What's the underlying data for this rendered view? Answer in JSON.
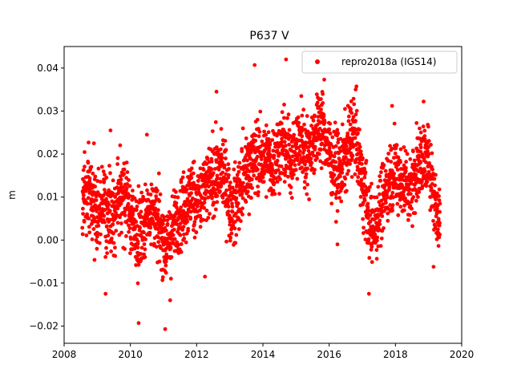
{
  "chart_data": {
    "type": "scatter",
    "title": "P637 V",
    "xlabel": "",
    "ylabel": "m",
    "xlim": [
      2008.0,
      2020.0
    ],
    "ylim": [
      -0.024,
      0.045
    ],
    "xticks": [
      2008,
      2010,
      2012,
      2014,
      2016,
      2018,
      2020
    ],
    "yticks": [
      -0.02,
      -0.01,
      0.0,
      0.01,
      0.02,
      0.03,
      0.04
    ],
    "xtick_labels": [
      "2008",
      "2010",
      "2012",
      "2014",
      "2016",
      "2018",
      "2020"
    ],
    "ytick_labels": [
      "−0.02",
      "−0.01",
      "0.00",
      "0.01",
      "0.02",
      "0.03",
      "0.04"
    ],
    "grid": false,
    "legend_position": "top-right",
    "series": [
      {
        "name": "repro2018a (IGS14)",
        "color": "#ff0000",
        "marker": "circle",
        "x": [
          2008.55,
          2008.7,
          2008.85,
          2009.0,
          2009.15,
          2009.3,
          2009.45,
          2009.6,
          2009.75,
          2009.9,
          2010.05,
          2010.2,
          2010.35,
          2010.5,
          2010.65,
          2010.8,
          2010.95,
          2011.1,
          2011.25,
          2011.4,
          2011.55,
          2011.7,
          2011.85,
          2012.0,
          2012.15,
          2012.3,
          2012.45,
          2012.6,
          2012.75,
          2012.9,
          2013.05,
          2013.2,
          2013.35,
          2013.5,
          2013.65,
          2013.8,
          2013.95,
          2014.1,
          2014.25,
          2014.4,
          2014.55,
          2014.7,
          2014.85,
          2015.0,
          2015.15,
          2015.3,
          2015.45,
          2015.6,
          2015.75,
          2015.9,
          2016.05,
          2016.2,
          2016.35,
          2016.5,
          2016.65,
          2016.8,
          2016.95,
          2017.1,
          2017.25,
          2017.4,
          2017.55,
          2017.7,
          2017.85,
          2018.0,
          2018.15,
          2018.3,
          2018.45,
          2018.6,
          2018.75,
          2018.9,
          2019.05,
          2019.2,
          2019.35
        ],
        "y": [
          0.009,
          0.012,
          0.008,
          0.006,
          0.009,
          0.007,
          0.006,
          0.008,
          0.01,
          0.009,
          0.004,
          0.001,
          0.003,
          0.006,
          0.008,
          0.004,
          0.002,
          -0.002,
          0.001,
          0.005,
          0.007,
          0.008,
          0.011,
          0.009,
          0.01,
          0.012,
          0.014,
          0.015,
          0.016,
          0.013,
          0.006,
          0.009,
          0.013,
          0.016,
          0.018,
          0.02,
          0.018,
          0.019,
          0.017,
          0.02,
          0.022,
          0.021,
          0.019,
          0.022,
          0.023,
          0.02,
          0.022,
          0.025,
          0.027,
          0.024,
          0.019,
          0.017,
          0.016,
          0.02,
          0.024,
          0.025,
          0.015,
          0.01,
          0.002,
          0.004,
          0.008,
          0.012,
          0.015,
          0.016,
          0.014,
          0.013,
          0.012,
          0.016,
          0.018,
          0.019,
          0.017,
          0.008,
          0.005
        ]
      }
    ],
    "outliers": {
      "x": [
        2009.4,
        2008.9,
        2010.5,
        2010.25,
        2011.05,
        2011.2,
        2012.25,
        2013.75,
        2014.7,
        2015.85,
        2016.8,
        2017.2,
        2017.9,
        2018.85,
        2019.15,
        2016.25,
        2012.6,
        2009.25
      ],
      "y": [
        0.0255,
        0.0225,
        0.0245,
        -0.0193,
        -0.0207,
        -0.014,
        -0.0085,
        0.0407,
        0.042,
        0.0373,
        0.035,
        -0.0125,
        0.0312,
        0.0322,
        -0.0062,
        -0.001,
        0.0345,
        -0.0125
      ]
    }
  }
}
